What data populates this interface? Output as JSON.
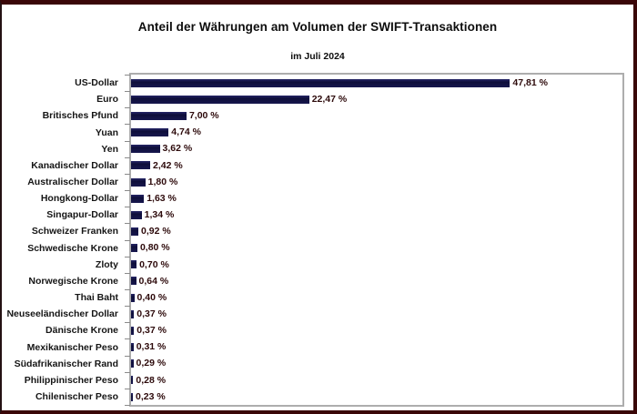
{
  "chart_data": {
    "type": "bar",
    "orientation": "horizontal",
    "title": "Anteil der Währungen am Volumen der SWIFT-Transaktionen",
    "subtitle": "im Juli 2024",
    "categories": [
      "US-Dollar",
      "Euro",
      "Britisches Pfund",
      "Yuan",
      "Yen",
      "Kanadischer Dollar",
      "Australischer Dollar",
      "Hongkong-Dollar",
      "Singapur-Dollar",
      "Schweizer Franken",
      "Schwedische Krone",
      "Zloty",
      "Norwegische Krone",
      "Thai Baht",
      "Neuseeländischer Dollar",
      "Dänische Krone",
      "Mexikanischer Peso",
      "Südafrikanischer Rand",
      "Philippinischer Peso",
      "Chilenischer Peso"
    ],
    "values": [
      47.81,
      22.47,
      7.0,
      4.74,
      3.62,
      2.42,
      1.8,
      1.63,
      1.34,
      0.92,
      0.8,
      0.7,
      0.64,
      0.4,
      0.37,
      0.37,
      0.31,
      0.29,
      0.28,
      0.23
    ],
    "value_labels": [
      "47,81 %",
      "22,47 %",
      "7,00 %",
      "4,74 %",
      "3,62 %",
      "2,42 %",
      "1,80 %",
      "1,63 %",
      "1,34 %",
      "0,92 %",
      "0,80 %",
      "0,70 %",
      "0,64 %",
      "0,40 %",
      "0,37 %",
      "0,37 %",
      "0,31 %",
      "0,29 %",
      "0,28 %",
      "0,23 %"
    ],
    "xlabel": "",
    "ylabel": "",
    "xlim": [
      0,
      62
    ],
    "grid": false,
    "legend": false,
    "unit": "%"
  },
  "colors": {
    "bar": "#15154a",
    "frame_border": "#3a0608",
    "plot_border": "#adadad",
    "category_text": "#151515",
    "value_text": "#2d0a0b",
    "title_text": "#0d0d0d"
  }
}
